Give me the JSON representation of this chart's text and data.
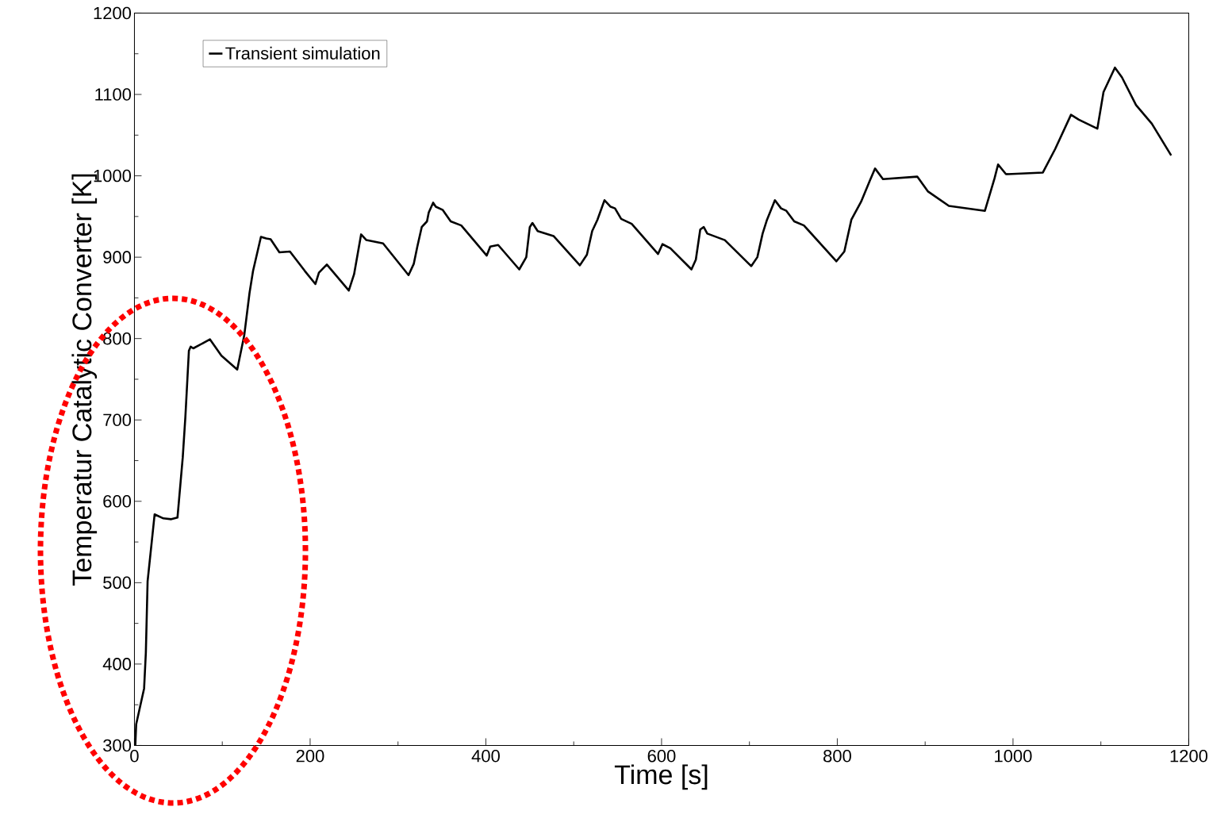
{
  "chart_data": {
    "type": "line",
    "xlabel": "Time [s]",
    "ylabel": "Temperatur Catalytic Converter [K]",
    "x": [
      1,
      2,
      11,
      13,
      15,
      23,
      33,
      42,
      49,
      55,
      58,
      62,
      64,
      67,
      86,
      99,
      117,
      125,
      131,
      135,
      144,
      150,
      155,
      165,
      177,
      194,
      206,
      210,
      219,
      244,
      250,
      258,
      264,
      283,
      312,
      318,
      322,
      327,
      333,
      335,
      340,
      343,
      351,
      360,
      372,
      401,
      405,
      414,
      438,
      446,
      450,
      453,
      459,
      477,
      507,
      515,
      521,
      527,
      535,
      542,
      547,
      554,
      566,
      596,
      601,
      610,
      634,
      639,
      644,
      648,
      652,
      672,
      702,
      709,
      715,
      720,
      729,
      736,
      742,
      751,
      762,
      799,
      808,
      816,
      827,
      837,
      843,
      852,
      891,
      903,
      927,
      968,
      979,
      983,
      992,
      1034,
      1048,
      1066,
      1075,
      1096,
      1103,
      1116,
      1124,
      1140,
      1158,
      1180
    ],
    "series": [
      {
        "name": "Transient simulation",
        "color": "#000000",
        "values": [
          300,
          326,
          370,
          414,
          502,
          584,
          579,
          578,
          580,
          654,
          704,
          785,
          790,
          788,
          799,
          779,
          762,
          804,
          856,
          883,
          925,
          923,
          922,
          906,
          907,
          883,
          867,
          881,
          891,
          859,
          879,
          928,
          921,
          917,
          878,
          892,
          913,
          937,
          944,
          955,
          967,
          962,
          958,
          944,
          939,
          902,
          913,
          915,
          885,
          900,
          937,
          942,
          932,
          926,
          890,
          903,
          932,
          946,
          970,
          962,
          960,
          947,
          941,
          904,
          916,
          911,
          885,
          897,
          934,
          937,
          929,
          921,
          889,
          900,
          929,
          946,
          970,
          960,
          957,
          944,
          939,
          895,
          907,
          946,
          968,
          994,
          1009,
          996,
          999,
          981,
          963,
          957,
          997,
          1014,
          1002,
          1004,
          1033,
          1075,
          1069,
          1058,
          1103,
          1133,
          1121,
          1087,
          1064,
          1025
        ]
      }
    ],
    "xlim": [
      0,
      1200
    ],
    "ylim": [
      300,
      1200
    ],
    "xticks": [
      0,
      200,
      400,
      600,
      800,
      1000,
      1200
    ],
    "yticks": [
      300,
      400,
      500,
      600,
      700,
      800,
      900,
      1000,
      1100,
      1200
    ],
    "legend": "top left",
    "grid": false
  }
}
